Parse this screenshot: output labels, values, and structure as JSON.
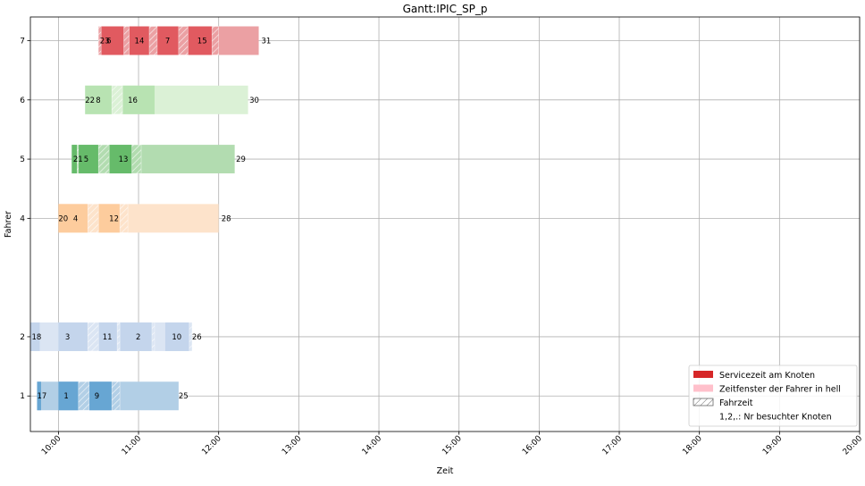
{
  "chart_data": {
    "type": "gantt",
    "title": "Gantt:IPIC_SP_p",
    "xlabel": "Zeit",
    "ylabel": "Fahrer",
    "grid": true,
    "legend_position": "lower-right",
    "xlim": [
      "09:39",
      "20:00"
    ],
    "ylim": [
      0.4,
      7.4
    ],
    "x_ticks": [
      "10:00",
      "11:00",
      "12:00",
      "13:00",
      "14:00",
      "15:00",
      "16:00",
      "17:00",
      "18:00",
      "19:00",
      "20:00"
    ],
    "y_ticks": [
      1,
      2,
      4,
      5,
      6,
      7
    ],
    "legend": [
      {
        "label": "Servicezeit am Knoten",
        "swatch": "service"
      },
      {
        "label": "Zeitfenster der Fahrer in hell",
        "swatch": "window"
      },
      {
        "label": "Fahrzeit",
        "swatch": "travel"
      },
      {
        "label": "1,2,.: Nr besuchter Knoten",
        "swatch": "none"
      }
    ],
    "drivers": [
      {
        "driver": 1,
        "light_color": "#b2cfe6",
        "service_color": "#67a6d3",
        "window": [
          "09:44",
          "11:30"
        ],
        "services": [
          [
            "09:44",
            "09:47"
          ],
          [
            "10:00",
            "10:15"
          ],
          [
            "10:23",
            "10:40"
          ]
        ],
        "travel": [
          [
            "10:15",
            "10:23"
          ],
          [
            "10:40",
            "10:46"
          ]
        ],
        "labels": [
          {
            "text": "17",
            "time": "09:44"
          },
          {
            "text": "1",
            "time": "10:04"
          },
          {
            "text": "9",
            "time": "10:27"
          },
          {
            "text": "25",
            "time": "11:30"
          }
        ]
      },
      {
        "driver": 2,
        "light_color": "#dbe5f3",
        "service_color": "#c4d5ec",
        "window": [
          "09:39",
          "11:40"
        ],
        "services": [
          [
            "09:39",
            "09:46"
          ],
          [
            "10:00",
            "10:22"
          ],
          [
            "10:30",
            "10:44"
          ],
          [
            "10:46",
            "11:10"
          ],
          [
            "11:20",
            "11:40"
          ]
        ],
        "travel": [
          [
            "10:22",
            "10:30"
          ],
          [
            "10:44",
            "10:46"
          ],
          [
            "11:10",
            "11:12"
          ],
          [
            "11:38",
            "11:40"
          ]
        ],
        "labels": [
          {
            "text": "18",
            "time": "09:40"
          },
          {
            "text": "3",
            "time": "10:05"
          },
          {
            "text": "11",
            "time": "10:33"
          },
          {
            "text": "2",
            "time": "10:58"
          },
          {
            "text": "10",
            "time": "11:25"
          },
          {
            "text": "26",
            "time": "11:40"
          }
        ]
      },
      {
        "driver": 4,
        "light_color": "#fde3cb",
        "service_color": "#fdcc9d",
        "window": [
          "10:00",
          "12:00"
        ],
        "services": [
          [
            "10:00",
            "10:22"
          ],
          [
            "10:30",
            "10:46"
          ]
        ],
        "travel": [
          [
            "10:22",
            "10:30"
          ],
          [
            "10:46",
            "10:52"
          ]
        ],
        "labels": [
          {
            "text": "20",
            "time": "10:00"
          },
          {
            "text": "4",
            "time": "10:11"
          },
          {
            "text": "12",
            "time": "10:38"
          },
          {
            "text": "28",
            "time": "12:02"
          }
        ]
      },
      {
        "driver": 5,
        "light_color": "#b2dcb0",
        "service_color": "#66bb6a",
        "window": [
          "10:10",
          "12:12"
        ],
        "services": [
          [
            "10:10",
            "10:14"
          ],
          [
            "10:15",
            "10:30"
          ],
          [
            "10:38",
            "10:55"
          ]
        ],
        "travel": [
          [
            "10:14",
            "10:15"
          ],
          [
            "10:30",
            "10:38"
          ],
          [
            "10:55",
            "11:02"
          ]
        ],
        "labels": [
          {
            "text": "21",
            "time": "10:11"
          },
          {
            "text": "5",
            "time": "10:19"
          },
          {
            "text": "13",
            "time": "10:45"
          },
          {
            "text": "29",
            "time": "12:13"
          }
        ]
      },
      {
        "driver": 6,
        "light_color": "#dbf1d6",
        "service_color": "#b8e3b2",
        "window": [
          "10:20",
          "12:22"
        ],
        "services": [
          [
            "10:20",
            "10:40"
          ],
          [
            "10:48",
            "11:12"
          ]
        ],
        "travel": [
          [
            "10:40",
            "10:48"
          ]
        ],
        "labels": [
          {
            "text": "22",
            "time": "10:20"
          },
          {
            "text": "8",
            "time": "10:28"
          },
          {
            "text": "16",
            "time": "10:52"
          },
          {
            "text": "30",
            "time": "12:23"
          }
        ]
      },
      {
        "driver": 7,
        "light_color": "#eba0a3",
        "service_color": "#e15a60",
        "window": [
          "10:30",
          "12:30"
        ],
        "services": [
          [
            "10:30",
            "10:32"
          ],
          [
            "10:32",
            "10:49"
          ],
          [
            "10:53",
            "11:08"
          ],
          [
            "11:14",
            "11:30"
          ],
          [
            "11:37",
            "11:55"
          ]
        ],
        "travel": [
          [
            "10:30",
            "10:32"
          ],
          [
            "10:49",
            "10:53"
          ],
          [
            "11:08",
            "11:14"
          ],
          [
            "11:30",
            "11:37"
          ],
          [
            "11:55",
            "12:00"
          ]
        ],
        "labels": [
          {
            "text": "23",
            "time": "10:31"
          },
          {
            "text": "6",
            "time": "10:36"
          },
          {
            "text": "14",
            "time": "10:57"
          },
          {
            "text": "7",
            "time": "11:20"
          },
          {
            "text": "15",
            "time": "11:44"
          },
          {
            "text": "31",
            "time": "12:32"
          }
        ]
      }
    ]
  }
}
